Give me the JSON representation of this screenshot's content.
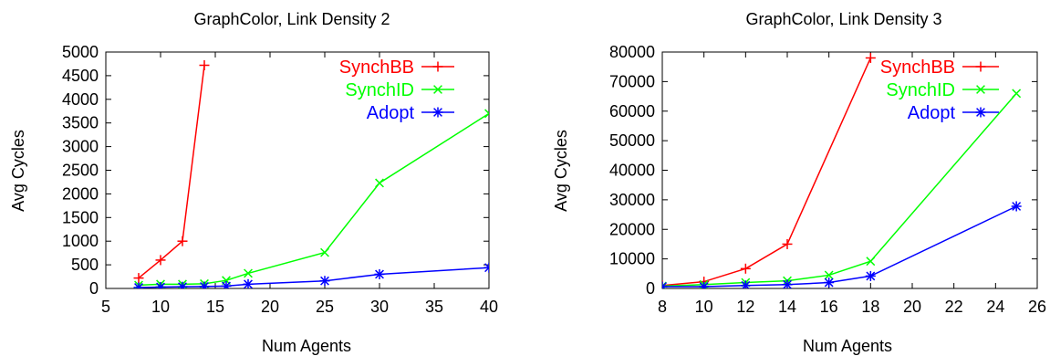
{
  "chart_data": [
    {
      "type": "line",
      "title": "GraphColor, Link Density 2",
      "xlabel": "Num Agents",
      "ylabel": "Avg Cycles",
      "xlim": [
        5,
        40
      ],
      "ylim": [
        0,
        5000
      ],
      "xticks": [
        5,
        10,
        15,
        20,
        25,
        30,
        35,
        40
      ],
      "yticks": [
        0,
        500,
        1000,
        1500,
        2000,
        2500,
        3000,
        3500,
        4000,
        4500,
        5000
      ],
      "grid": false,
      "legend_position": "top-right",
      "series": [
        {
          "name": "SynchBB",
          "color": "#ff0000",
          "marker": "plus",
          "x": [
            8,
            10,
            12,
            14
          ],
          "y": [
            220,
            600,
            1000,
            4720
          ]
        },
        {
          "name": "SynchID",
          "color": "#00ff00",
          "marker": "cross",
          "x": [
            8,
            10,
            12,
            14,
            16,
            18,
            25,
            30,
            40
          ],
          "y": [
            70,
            90,
            90,
            100,
            170,
            320,
            760,
            2230,
            3700
          ]
        },
        {
          "name": "Adopt",
          "color": "#0000ff",
          "marker": "star",
          "x": [
            8,
            10,
            12,
            14,
            16,
            18,
            25,
            30,
            40
          ],
          "y": [
            20,
            30,
            35,
            40,
            50,
            90,
            160,
            300,
            440
          ]
        }
      ]
    },
    {
      "type": "line",
      "title": "GraphColor, Link Density 3",
      "xlabel": "Num Agents",
      "ylabel": "Avg Cycles",
      "xlim": [
        8,
        26
      ],
      "ylim": [
        0,
        80000
      ],
      "xticks": [
        8,
        10,
        12,
        14,
        16,
        18,
        20,
        22,
        24,
        26
      ],
      "yticks": [
        0,
        10000,
        20000,
        30000,
        40000,
        50000,
        60000,
        70000,
        80000
      ],
      "grid": false,
      "legend_position": "top-right",
      "series": [
        {
          "name": "SynchBB",
          "color": "#ff0000",
          "marker": "plus",
          "x": [
            8,
            10,
            12,
            14,
            18
          ],
          "y": [
            1000,
            2300,
            6700,
            15000,
            78000
          ]
        },
        {
          "name": "SynchID",
          "color": "#00ff00",
          "marker": "cross",
          "x": [
            8,
            10,
            12,
            14,
            16,
            18,
            25
          ],
          "y": [
            800,
            1300,
            2000,
            2600,
            4500,
            9200,
            66000
          ]
        },
        {
          "name": "Adopt",
          "color": "#0000ff",
          "marker": "star",
          "x": [
            8,
            10,
            12,
            14,
            16,
            18,
            25
          ],
          "y": [
            600,
            600,
            1000,
            1300,
            2000,
            4200,
            27800
          ]
        }
      ]
    }
  ]
}
